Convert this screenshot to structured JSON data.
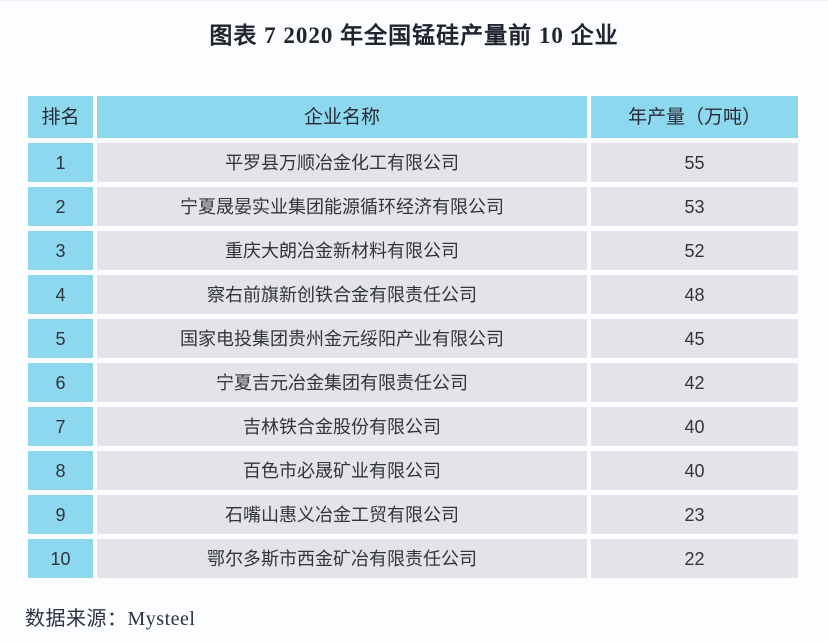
{
  "page": {
    "title": "图表 7  2020 年全国锰硅产量前 10 企业",
    "source": "数据来源：Mysteel"
  },
  "table": {
    "headers": {
      "rank": "排名",
      "company": "企业名称",
      "output": "年产量（万吨）"
    },
    "rows": [
      {
        "rank": "1",
        "company": "平罗县万顺冶金化工有限公司",
        "output": "55"
      },
      {
        "rank": "2",
        "company": "宁夏晟晏实业集团能源循环经济有限公司",
        "output": "53"
      },
      {
        "rank": "3",
        "company": "重庆大朗冶金新材料有限公司",
        "output": "52"
      },
      {
        "rank": "4",
        "company": "察右前旗新创铁合金有限责任公司",
        "output": "48"
      },
      {
        "rank": "5",
        "company": "国家电投集团贵州金元绥阳产业有限公司",
        "output": "45"
      },
      {
        "rank": "6",
        "company": "宁夏吉元冶金集团有限责任公司",
        "output": "42"
      },
      {
        "rank": "7",
        "company": "吉林铁合金股份有限公司",
        "output": "40"
      },
      {
        "rank": "8",
        "company": "百色市必晟矿业有限公司",
        "output": "40"
      },
      {
        "rank": "9",
        "company": "石嘴山惠义冶金工贸有限公司",
        "output": "23"
      },
      {
        "rank": "10",
        "company": "鄂尔多斯市西金矿冶有限责任公司",
        "output": "22"
      }
    ]
  },
  "colors": {
    "header_bg": "#8ED8EF",
    "rank_bg": "#8ED8EF",
    "cell_bg": "#E4E4E8",
    "page_bg": "#FBFDFE",
    "title_color": "#20242E"
  },
  "chart_data": {
    "type": "table",
    "title": "图表 7  2020 年全国锰硅产量前 10 企业",
    "columns": [
      "排名",
      "企业名称",
      "年产量（万吨）"
    ],
    "rows": [
      [
        1,
        "平罗县万顺冶金化工有限公司",
        55
      ],
      [
        2,
        "宁夏晟晏实业集团能源循环经济有限公司",
        53
      ],
      [
        3,
        "重庆大朗冶金新材料有限公司",
        52
      ],
      [
        4,
        "察右前旗新创铁合金有限责任公司",
        48
      ],
      [
        5,
        "国家电投集团贵州金元绥阳产业有限公司",
        45
      ],
      [
        6,
        "宁夏吉元冶金集团有限责任公司",
        42
      ],
      [
        7,
        "吉林铁合金股份有限公司",
        40
      ],
      [
        8,
        "百色市必晟矿业有限公司",
        40
      ],
      [
        9,
        "石嘴山惠义冶金工贸有限公司",
        23
      ],
      [
        10,
        "鄂尔多斯市西金矿冶有限责任公司",
        22
      ]
    ],
    "source": "Mysteel"
  }
}
